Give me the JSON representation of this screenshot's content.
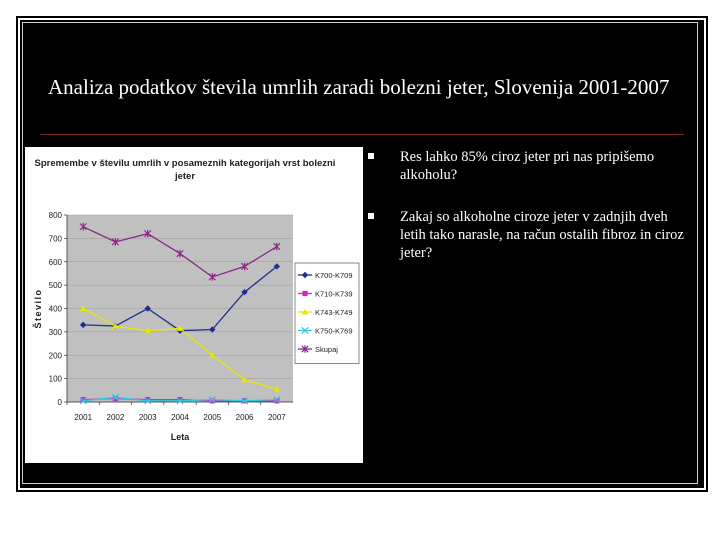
{
  "slide": {
    "title": "Analiza podatkov števila umrlih zaradi bolezni jeter, Slovenija 2001-2007",
    "bullets": [
      "Res lahko 85% ciroz jeter pri nas pripišemo alkoholu?",
      "Zakaj so alkoholne ciroze jeter v zadnjih dveh letih tako narasle, na račun ostalih fibroz in ciroz jeter?"
    ]
  },
  "chart_data": {
    "type": "line",
    "title": "Spremembe v številu umrlih v posameznih kategorijah vrst bolezni jeter",
    "xlabel": "Leta",
    "ylabel": "Število",
    "ylim": [
      0,
      800
    ],
    "yticks": [
      0,
      100,
      200,
      300,
      400,
      500,
      600,
      700,
      800
    ],
    "categories": [
      "2001",
      "2002",
      "2003",
      "2004",
      "2005",
      "2006",
      "2007"
    ],
    "legend_position": "right",
    "series": [
      {
        "name": "K700-K709",
        "color": "#1f2f8f",
        "marker": "diamond",
        "values": [
          330,
          325,
          400,
          305,
          310,
          470,
          580
        ]
      },
      {
        "name": "K710-K739",
        "color": "#e020c0",
        "marker": "square",
        "values": [
          10,
          15,
          10,
          10,
          5,
          5,
          5
        ]
      },
      {
        "name": "K743-K749",
        "color": "#e8e800",
        "marker": "triangle",
        "values": [
          400,
          325,
          305,
          315,
          200,
          95,
          55
        ]
      },
      {
        "name": "K750-K769",
        "color": "#30c8e0",
        "marker": "x",
        "values": [
          5,
          20,
          5,
          5,
          10,
          5,
          10
        ]
      },
      {
        "name": "Skupaj",
        "color": "#8a2a8a",
        "marker": "star",
        "values": [
          750,
          685,
          720,
          635,
          535,
          580,
          665
        ]
      }
    ]
  }
}
